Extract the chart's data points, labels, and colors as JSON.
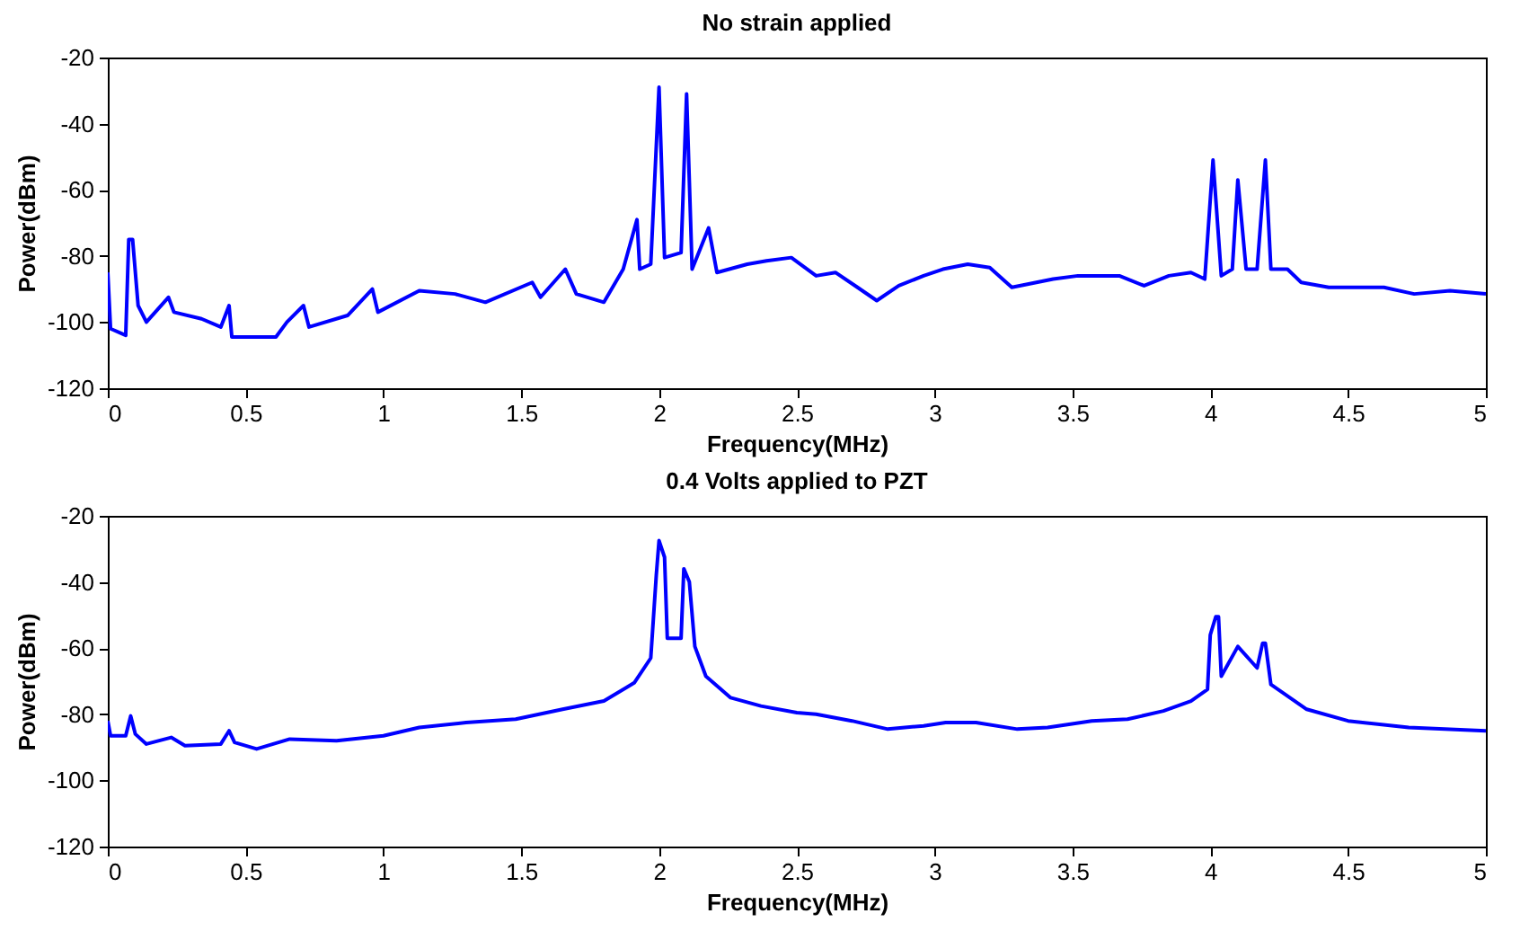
{
  "chart_data": [
    {
      "type": "line",
      "title": "No strain applied",
      "xlabel": "Frequency(MHz)",
      "ylabel": "Power(dBm)",
      "xlim": [
        0,
        5
      ],
      "xticks": [
        0,
        0.5,
        1,
        1.5,
        2,
        2.5,
        3,
        3.5,
        4,
        4.5,
        5
      ],
      "ylim": [
        -120,
        -20
      ],
      "yticks": [
        -120,
        -100,
        -80,
        -60,
        -40,
        -20
      ],
      "grid": false,
      "series": [
        {
          "color": "#0000ff",
          "x": [
            0,
            0.01,
            0.065,
            0.076,
            0.09,
            0.11,
            0.14,
            0.22,
            0.24,
            0.34,
            0.41,
            0.44,
            0.45,
            0.61,
            0.65,
            0.71,
            0.73,
            0.87,
            0.96,
            0.98,
            1.13,
            1.26,
            1.37,
            1.54,
            1.57,
            1.66,
            1.7,
            1.8,
            1.87,
            1.92,
            1.93,
            1.97,
            2.0,
            2.02,
            2.08,
            2.1,
            2.12,
            2.18,
            2.21,
            2.32,
            2.39,
            2.48,
            2.57,
            2.64,
            2.72,
            2.79,
            2.87,
            2.96,
            3.03,
            3.12,
            3.2,
            3.28,
            3.43,
            3.52,
            3.67,
            3.76,
            3.85,
            3.93,
            3.98,
            4.01,
            4.04,
            4.08,
            4.1,
            4.13,
            4.17,
            4.2,
            4.22,
            4.28,
            4.33,
            4.43,
            4.63,
            4.74,
            4.87,
            5.0
          ],
          "values": [
            -85,
            -102,
            -104,
            -75,
            -75,
            -95,
            -100,
            -92.5,
            -97,
            -99,
            -101.5,
            -95,
            -104.5,
            -104.5,
            -100,
            -95,
            -101.5,
            -98,
            -90,
            -97,
            -90.5,
            -91.5,
            -94,
            -88,
            -92.5,
            -84,
            -91.5,
            -94,
            -84,
            -69,
            -84,
            -82.5,
            -29,
            -80.5,
            -79,
            -31,
            -84,
            -71.5,
            -85,
            -82.5,
            -81.5,
            -80.5,
            -86,
            -85,
            -89.5,
            -93.5,
            -89,
            -86,
            -84,
            -82.5,
            -83.5,
            -89.5,
            -87,
            -86,
            -86,
            -89,
            -86,
            -85,
            -87,
            -51,
            -86,
            -84,
            -57,
            -84,
            -84,
            -51,
            -84,
            -84,
            -88,
            -89.5,
            -89.5,
            -91.5,
            -90.5,
            -91.5
          ]
        }
      ]
    },
    {
      "type": "line",
      "title": "0.4 Volts applied to PZT",
      "xlabel": "Frequency(MHz)",
      "ylabel": "Power(dBm)",
      "xlim": [
        0,
        5
      ],
      "xticks": [
        0,
        0.5,
        1,
        1.5,
        2,
        2.5,
        3,
        3.5,
        4,
        4.5,
        5
      ],
      "ylim": [
        -120,
        -20
      ],
      "yticks": [
        -120,
        -100,
        -80,
        -60,
        -40,
        -20
      ],
      "grid": false,
      "series": [
        {
          "color": "#0000ff",
          "x": [
            0,
            0.01,
            0.065,
            0.083,
            0.1,
            0.14,
            0.23,
            0.28,
            0.41,
            0.44,
            0.46,
            0.54,
            0.66,
            0.83,
            1.0,
            1.13,
            1.3,
            1.48,
            1.65,
            1.8,
            1.91,
            1.97,
            1.99,
            2.0,
            2.02,
            2.03,
            2.08,
            2.09,
            2.11,
            2.13,
            2.17,
            2.26,
            2.37,
            2.5,
            2.57,
            2.7,
            2.83,
            2.96,
            3.04,
            3.15,
            3.3,
            3.41,
            3.57,
            3.7,
            3.83,
            3.93,
            3.99,
            4.0,
            4.02,
            4.03,
            4.04,
            4.1,
            4.17,
            4.19,
            4.2,
            4.22,
            4.35,
            4.5,
            4.72,
            5.0
          ],
          "values": [
            -82,
            -86.5,
            -86.5,
            -80.5,
            -86,
            -89,
            -87,
            -89.5,
            -89,
            -85,
            -88.5,
            -90.5,
            -87.5,
            -88,
            -86.5,
            -84,
            -82.5,
            -81.5,
            -78.5,
            -76,
            -70.5,
            -63,
            -38,
            -27.5,
            -32.5,
            -57,
            -57,
            -36,
            -40,
            -59.5,
            -68.5,
            -75,
            -77.5,
            -79.5,
            -80,
            -82,
            -84.5,
            -83.5,
            -82.5,
            -82.5,
            -84.5,
            -84,
            -82,
            -81.5,
            -79,
            -76,
            -72.5,
            -56,
            -50.5,
            -50.5,
            -68.5,
            -59.5,
            -66,
            -58.5,
            -58.5,
            -71,
            -78.5,
            -82,
            -84,
            -85
          ]
        }
      ]
    }
  ]
}
